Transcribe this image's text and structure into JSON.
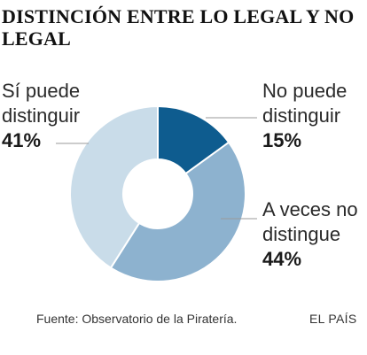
{
  "chart_data": {
    "type": "pie",
    "variant": "donut",
    "title": "DISTINCIÓN ENTRE LO LEGAL Y NO LEGAL",
    "slices": [
      {
        "label_line1": "No puede",
        "label_line2": "distinguir",
        "value": 15,
        "value_text": "15%",
        "color": "#0e5c8f"
      },
      {
        "label_line1": "A veces no",
        "label_line2": "distingue",
        "value": 44,
        "value_text": "44%",
        "color": "#8db2cf"
      },
      {
        "label_line1": "Sí puede",
        "label_line2": "distinguir",
        "value": 41,
        "value_text": "41%",
        "color": "#c9dce9"
      }
    ],
    "source": "Fuente: Observatorio de la Piratería.",
    "brand": "EL PAÍS"
  }
}
